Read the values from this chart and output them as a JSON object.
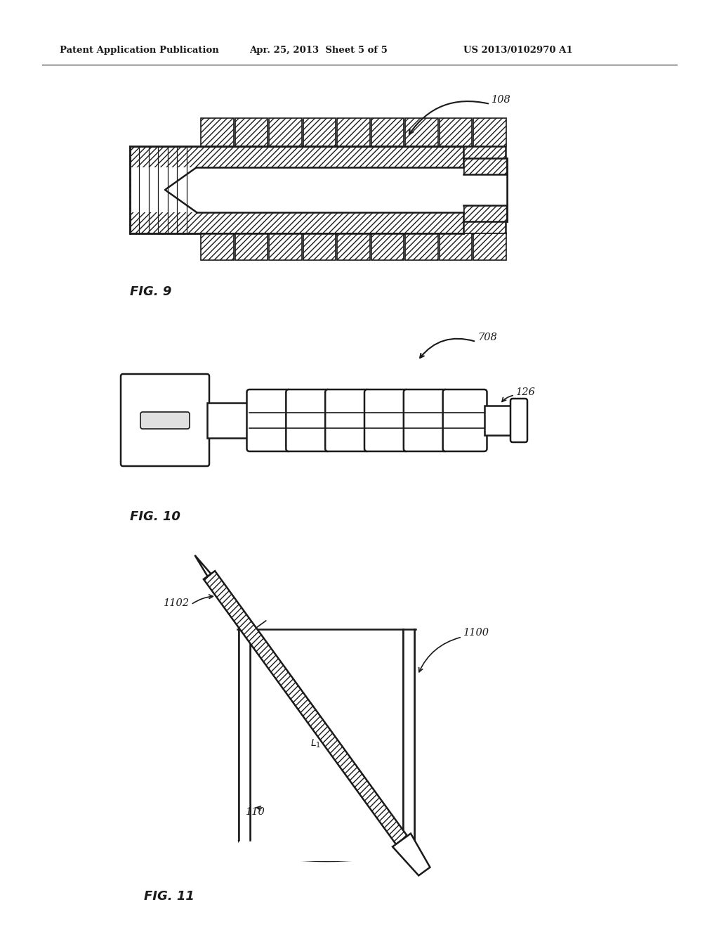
{
  "header_left": "Patent Application Publication",
  "header_mid": "Apr. 25, 2013  Sheet 5 of 5",
  "header_right": "US 2013/0102970 A1",
  "fig9_label": "FIG. 9",
  "fig10_label": "FIG. 10",
  "fig11_label": "FIG. 11",
  "label_108": "108",
  "label_708": "708",
  "label_126": "126",
  "label_1100": "1100",
  "label_1102": "1102",
  "label_110": "110",
  "label_L1": "L",
  "bg_color": "#ffffff",
  "line_color": "#1a1a1a"
}
